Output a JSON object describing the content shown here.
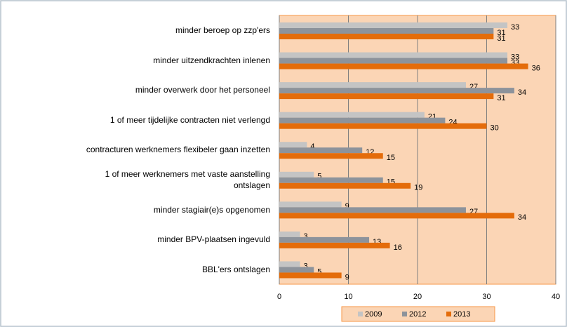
{
  "chart_data": {
    "type": "hbar",
    "categories": [
      "minder beroep op zzp'ers",
      "minder uitzendkrachten inlenen",
      "minder overwerk door het personeel",
      "1 of meer tijdelijke contracten niet verlengd",
      "contracturen werknemers flexibeler gaan inzetten",
      "1 of meer werknemers met vaste aanstelling ontslagen",
      "minder stagiair(e)s opgenomen",
      "minder BPV-plaatsen ingevuld",
      "BBL'ers ontslagen"
    ],
    "series": [
      {
        "name": "2009",
        "color": "#c4c4c4",
        "values": [
          33,
          33,
          27,
          21,
          4,
          5,
          9,
          3,
          3
        ]
      },
      {
        "name": "2012",
        "color": "#8d939b",
        "values": [
          31,
          33,
          34,
          24,
          12,
          15,
          27,
          13,
          5
        ]
      },
      {
        "name": "2013",
        "color": "#e46c0a",
        "values": [
          31,
          36,
          31,
          30,
          15,
          19,
          34,
          16,
          9
        ]
      }
    ],
    "xlim": [
      0,
      40
    ],
    "xticks": [
      0,
      10,
      20,
      30,
      40
    ],
    "grid": true,
    "legend": "bottom"
  }
}
